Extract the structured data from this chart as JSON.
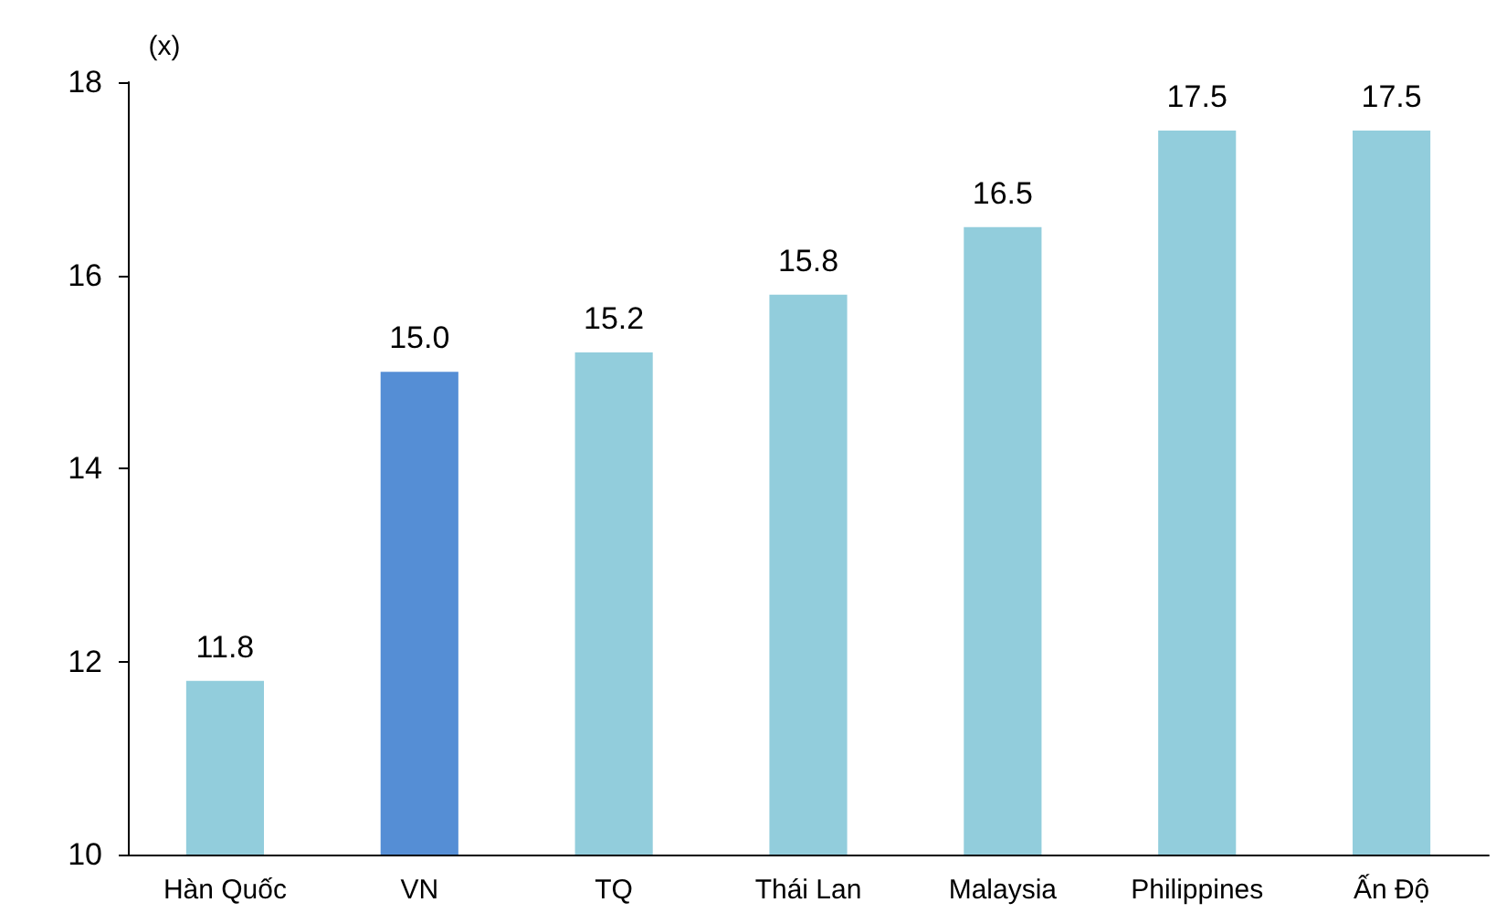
{
  "chart_data": {
    "type": "bar",
    "ylabel": "(x)",
    "categories": [
      "Hàn Quốc",
      "VN",
      "TQ",
      "Thái Lan",
      "Malaysia",
      "Philippines",
      "Ấn Độ"
    ],
    "values": [
      11.8,
      15.0,
      15.2,
      15.8,
      16.5,
      17.5,
      17.5
    ],
    "value_labels": [
      "11.8",
      "15.0",
      "15.2",
      "15.8",
      "16.5",
      "17.5",
      "17.5"
    ],
    "colors": [
      "#92cddc",
      "#558ed5",
      "#92cddc",
      "#92cddc",
      "#92cddc",
      "#92cddc",
      "#92cddc"
    ],
    "ylim": [
      10,
      18
    ],
    "yticks": [
      10,
      12,
      14,
      16,
      18
    ],
    "grid": false
  }
}
